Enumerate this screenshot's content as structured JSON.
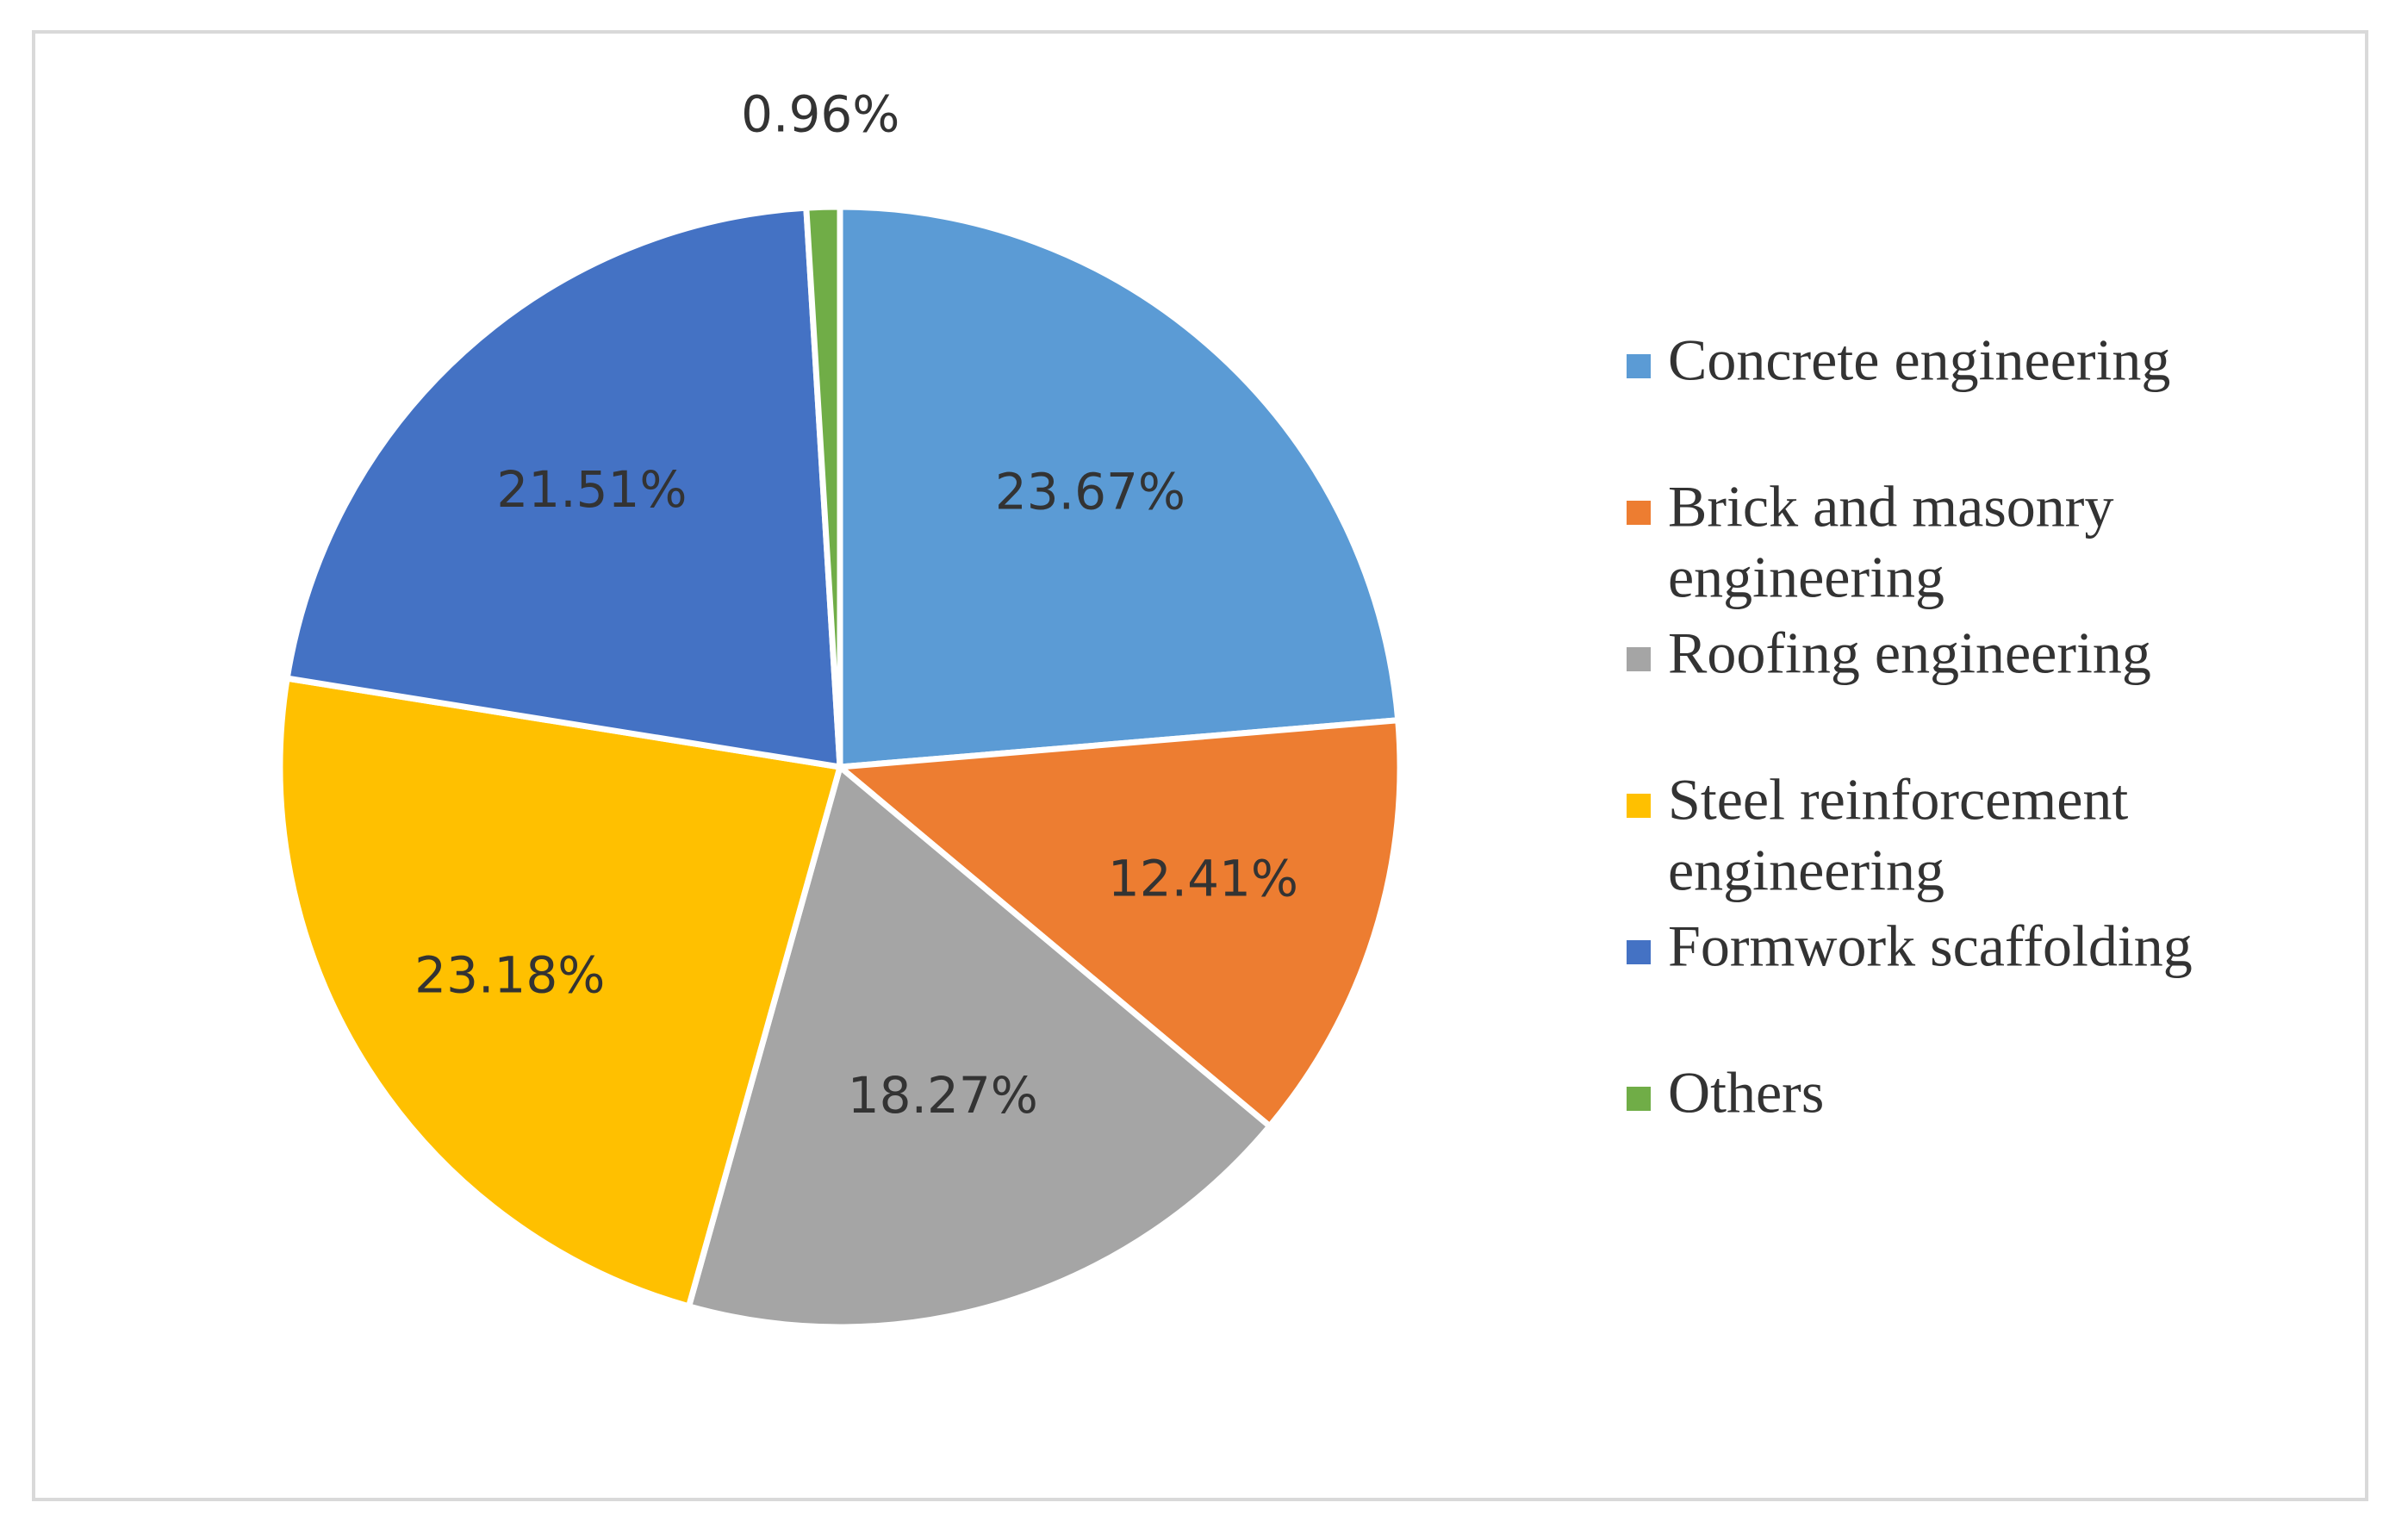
{
  "chart_data": {
    "type": "pie",
    "title": "",
    "legend_position": "right",
    "slices": [
      {
        "name": "Concrete engineering",
        "legend_label": [
          "Concrete engineering"
        ],
        "value": 23.67,
        "label": "23.67%",
        "color": "#5b9bd5"
      },
      {
        "name": "Brick and masonry engineering",
        "legend_label": [
          "Brick and masonry",
          "engineering"
        ],
        "value": 12.41,
        "label": "12.41%",
        "color": "#ed7d31"
      },
      {
        "name": "Roofing engineering",
        "legend_label": [
          " Roofing engineering"
        ],
        "value": 18.27,
        "label": "18.27%",
        "color": "#a5a5a5"
      },
      {
        "name": "Steel reinforcement engineering",
        "legend_label": [
          "Steel reinforcement",
          "engineering"
        ],
        "value": 23.18,
        "label": "23.18%",
        "color": "#ffc000"
      },
      {
        "name": "Formwork scaffolding",
        "legend_label": [
          "Formwork scaffolding"
        ],
        "value": 21.51,
        "label": "21.51%",
        "color": "#4472c4"
      },
      {
        "name": "Others",
        "legend_label": [
          "Others"
        ],
        "value": 0.96,
        "label": "0.96%",
        "color": "#70ad47"
      }
    ]
  }
}
